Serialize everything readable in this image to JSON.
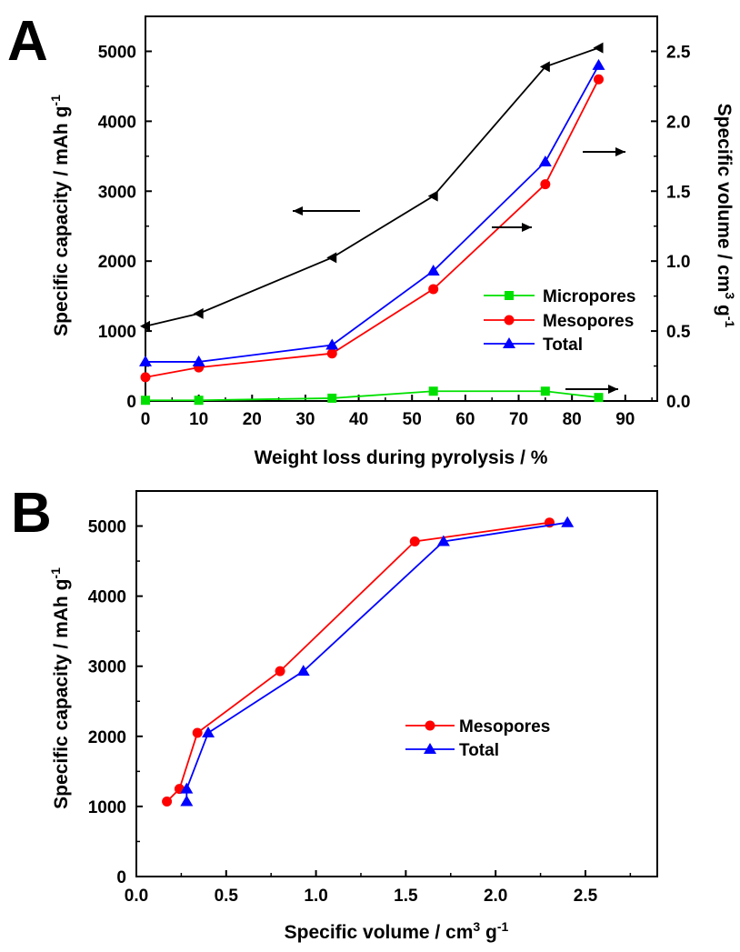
{
  "chart_data": [
    {
      "panel_label": "A",
      "type": "line",
      "xlabel": "Weight loss during pyrolysis / %",
      "ylabel_left": "Specific capacity / mAh g",
      "ylabel_left_sup": "-1",
      "ylabel_right": "Specific volume / cm",
      "ylabel_right_sup": "3",
      "ylabel_right_tail": " g",
      "ylabel_right_sup2": "-1",
      "xlim": [
        0,
        96
      ],
      "ylim_left": [
        0,
        5500
      ],
      "ylim_right": [
        0,
        2.75
      ],
      "x_ticks": [
        "0",
        "10",
        "20",
        "30",
        "40",
        "50",
        "60",
        "70",
        "80",
        "90"
      ],
      "y_left_ticks": [
        "0",
        "1000",
        "2000",
        "3000",
        "4000",
        "5000"
      ],
      "y_right_ticks": [
        "0.0",
        "0.5",
        "1.0",
        "1.5",
        "2.0",
        "2.5"
      ],
      "legend_position": "lower-right",
      "capacity_series": {
        "axis": "left",
        "color": "#000000",
        "marker": "triangle-left",
        "x": [
          0,
          10,
          35,
          54,
          75,
          85
        ],
        "values": [
          1070,
          1250,
          2050,
          2930,
          4780,
          5050
        ]
      },
      "series": [
        {
          "name": "Micropores",
          "axis": "right",
          "color": "#00e000",
          "marker": "square",
          "x": [
            0,
            10,
            35,
            54,
            75,
            85
          ],
          "values": [
            0.005,
            0.005,
            0.02,
            0.07,
            0.07,
            0.025
          ]
        },
        {
          "name": "Mesopores",
          "axis": "right",
          "color": "#ff0000",
          "marker": "circle",
          "x": [
            0,
            10,
            35,
            54,
            75,
            85
          ],
          "values": [
            0.17,
            0.24,
            0.34,
            0.8,
            1.55,
            2.3
          ]
        },
        {
          "name": "Total",
          "axis": "right",
          "color": "#0000ff",
          "marker": "triangle-up",
          "x": [
            0,
            10,
            35,
            54,
            75,
            85
          ],
          "values": [
            0.28,
            0.28,
            0.4,
            0.93,
            1.71,
            2.4
          ]
        }
      ]
    },
    {
      "panel_label": "B",
      "type": "line",
      "xlabel": "Specific volume / cm",
      "xlabel_sup": "3",
      "xlabel_tail": " g",
      "xlabel_sup2": "-1",
      "ylabel": "Specific capacity / mAh g",
      "ylabel_sup": "-1",
      "xlim": [
        0,
        2.9
      ],
      "ylim": [
        0,
        5500
      ],
      "x_ticks": [
        "0.0",
        "0.5",
        "1.0",
        "1.5",
        "2.0",
        "2.5"
      ],
      "y_ticks": [
        "0",
        "1000",
        "2000",
        "3000",
        "4000",
        "5000"
      ],
      "legend_position": "center-right",
      "series": [
        {
          "name": "Mesopores",
          "color": "#ff0000",
          "marker": "circle",
          "x": [
            0.17,
            0.24,
            0.34,
            0.8,
            1.55,
            2.3
          ],
          "values": [
            1070,
            1250,
            2050,
            2930,
            4780,
            5050
          ]
        },
        {
          "name": "Total",
          "color": "#0000ff",
          "marker": "triangle-up",
          "x": [
            0.28,
            0.28,
            0.4,
            0.93,
            1.71,
            2.4
          ],
          "values": [
            1070,
            1250,
            2050,
            2930,
            4780,
            5050
          ]
        }
      ]
    }
  ]
}
